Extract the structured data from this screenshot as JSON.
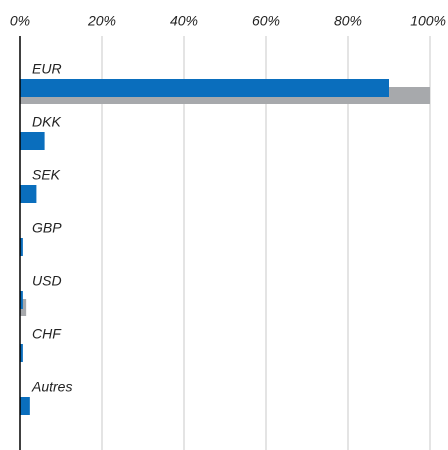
{
  "chart_data": {
    "type": "hbar",
    "categories": [
      "EUR",
      "DKK",
      "SEK",
      "GBP",
      "USD",
      "CHF",
      "Autres"
    ],
    "series": [
      {
        "color": "#0a6ebd",
        "values": [
          90,
          6,
          4,
          0.7,
          0.7,
          0.7,
          2.4
        ]
      },
      {
        "color": "#a7a9ac",
        "values": [
          100,
          0,
          0,
          0,
          1.5,
          0,
          0
        ]
      }
    ],
    "xlim": [
      0,
      100
    ],
    "xticks": [
      {
        "value": 0,
        "label": "0%"
      },
      {
        "value": 20,
        "label": "20%"
      },
      {
        "value": 40,
        "label": "40%"
      },
      {
        "value": 60,
        "label": "60%"
      },
      {
        "value": 80,
        "label": "80%"
      },
      {
        "value": 100,
        "label": "100%"
      }
    ],
    "grid": true
  }
}
